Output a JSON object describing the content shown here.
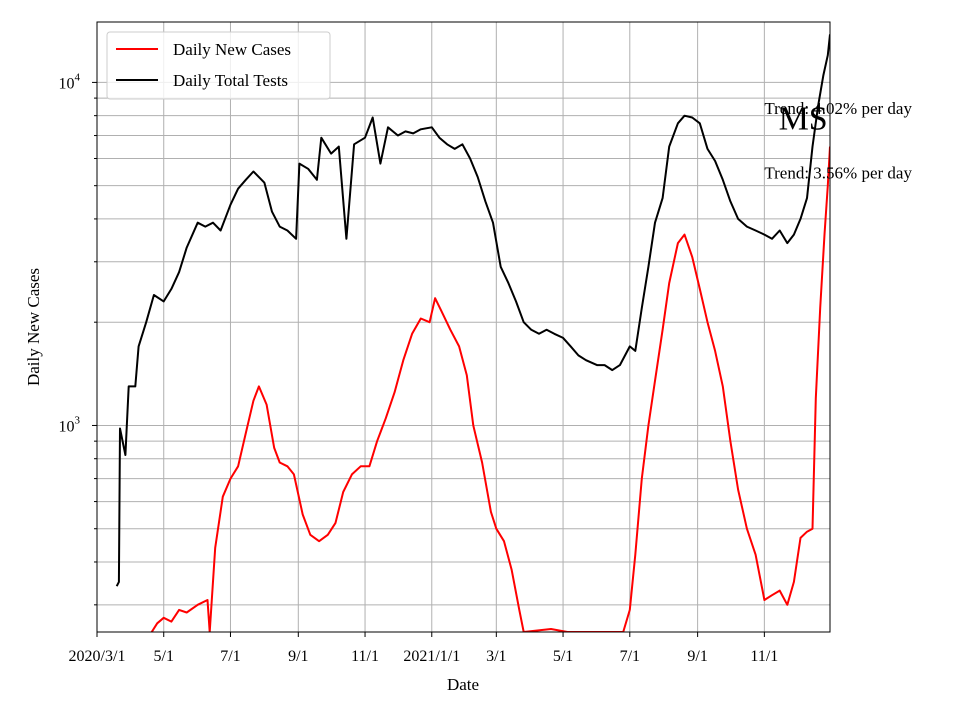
{
  "chart_data": {
    "type": "line",
    "xlabel": "Date",
    "ylabel": "Daily New Cases",
    "yscale": "log",
    "ylim": [
      250,
      15000
    ],
    "xlim": [
      "2020-03-01",
      "2021-12-31"
    ],
    "grid": true,
    "legend_placement": "top-left",
    "x_ticks": [
      {
        "date": "2020-03-01",
        "label": "2020/3/1"
      },
      {
        "date": "2020-05-01",
        "label": "5/1"
      },
      {
        "date": "2020-07-01",
        "label": "7/1"
      },
      {
        "date": "2020-09-01",
        "label": "9/1"
      },
      {
        "date": "2020-11-01",
        "label": "11/1"
      },
      {
        "date": "2021-01-01",
        "label": "2021/1/1"
      },
      {
        "date": "2021-03-01",
        "label": "3/1"
      },
      {
        "date": "2021-05-01",
        "label": "5/1"
      },
      {
        "date": "2021-07-01",
        "label": "7/1"
      },
      {
        "date": "2021-09-01",
        "label": "9/1"
      },
      {
        "date": "2021-11-01",
        "label": "11/1"
      }
    ],
    "y_ticks": [
      {
        "value": 1000,
        "base": "10",
        "exp": "3"
      },
      {
        "value": 10000,
        "base": "10",
        "exp": "4"
      }
    ],
    "series": [
      {
        "name": "Daily New Cases",
        "color": "#ff0000",
        "points": [
          [
            "2020-04-20",
            250
          ],
          [
            "2020-04-25",
            265
          ],
          [
            "2020-05-01",
            275
          ],
          [
            "2020-05-08",
            268
          ],
          [
            "2020-05-15",
            290
          ],
          [
            "2020-05-22",
            285
          ],
          [
            "2020-06-01",
            300
          ],
          [
            "2020-06-10",
            310
          ],
          [
            "2020-06-12",
            250
          ],
          [
            "2020-06-17",
            440
          ],
          [
            "2020-06-24",
            620
          ],
          [
            "2020-07-01",
            700
          ],
          [
            "2020-07-08",
            760
          ],
          [
            "2020-07-15",
            950
          ],
          [
            "2020-07-22",
            1180
          ],
          [
            "2020-07-27",
            1300
          ],
          [
            "2020-08-03",
            1150
          ],
          [
            "2020-08-10",
            860
          ],
          [
            "2020-08-15",
            780
          ],
          [
            "2020-08-22",
            760
          ],
          [
            "2020-08-28",
            720
          ],
          [
            "2020-09-05",
            550
          ],
          [
            "2020-09-12",
            480
          ],
          [
            "2020-09-20",
            460
          ],
          [
            "2020-09-28",
            480
          ],
          [
            "2020-10-05",
            520
          ],
          [
            "2020-10-12",
            640
          ],
          [
            "2020-10-20",
            720
          ],
          [
            "2020-10-28",
            760
          ],
          [
            "2020-11-05",
            760
          ],
          [
            "2020-11-12",
            900
          ],
          [
            "2020-11-20",
            1050
          ],
          [
            "2020-11-28",
            1250
          ],
          [
            "2020-12-06",
            1550
          ],
          [
            "2020-12-14",
            1850
          ],
          [
            "2020-12-22",
            2050
          ],
          [
            "2020-12-30",
            2000
          ],
          [
            "2021-01-04",
            2350
          ],
          [
            "2021-01-10",
            2150
          ],
          [
            "2021-01-18",
            1900
          ],
          [
            "2021-01-26",
            1700
          ],
          [
            "2021-02-02",
            1400
          ],
          [
            "2021-02-08",
            1000
          ],
          [
            "2021-02-16",
            780
          ],
          [
            "2021-02-24",
            560
          ],
          [
            "2021-03-01",
            500
          ],
          [
            "2021-03-08",
            460
          ],
          [
            "2021-03-15",
            380
          ],
          [
            "2021-03-22",
            290
          ],
          [
            "2021-03-26",
            250
          ],
          [
            "2021-04-20",
            255
          ],
          [
            "2021-05-05",
            250
          ],
          [
            "2021-06-25",
            250
          ],
          [
            "2021-07-01",
            290
          ],
          [
            "2021-07-06",
            420
          ],
          [
            "2021-07-12",
            700
          ],
          [
            "2021-07-18",
            1000
          ],
          [
            "2021-07-24",
            1350
          ],
          [
            "2021-07-31",
            1900
          ],
          [
            "2021-08-06",
            2600
          ],
          [
            "2021-08-14",
            3400
          ],
          [
            "2021-08-20",
            3600
          ],
          [
            "2021-08-27",
            3100
          ],
          [
            "2021-09-03",
            2500
          ],
          [
            "2021-09-10",
            2000
          ],
          [
            "2021-09-17",
            1650
          ],
          [
            "2021-09-24",
            1300
          ],
          [
            "2021-10-01",
            900
          ],
          [
            "2021-10-08",
            650
          ],
          [
            "2021-10-16",
            500
          ],
          [
            "2021-10-24",
            420
          ],
          [
            "2021-11-01",
            310
          ],
          [
            "2021-11-08",
            320
          ],
          [
            "2021-11-15",
            330
          ],
          [
            "2021-11-22",
            300
          ],
          [
            "2021-11-28",
            350
          ],
          [
            "2021-12-04",
            470
          ],
          [
            "2021-12-10",
            490
          ],
          [
            "2021-12-15",
            500
          ],
          [
            "2021-12-18",
            1200
          ],
          [
            "2021-12-22",
            2200
          ],
          [
            "2021-12-26",
            3600
          ],
          [
            "2021-12-29",
            5000
          ],
          [
            "2021-12-31",
            6500
          ]
        ]
      },
      {
        "name": "Daily Total Tests",
        "color": "#000000",
        "points": [
          [
            "2020-03-19",
            340
          ],
          [
            "2020-03-21",
            350
          ],
          [
            "2020-03-22",
            980
          ],
          [
            "2020-03-27",
            820
          ],
          [
            "2020-03-30",
            1300
          ],
          [
            "2020-04-05",
            1300
          ],
          [
            "2020-04-08",
            1700
          ],
          [
            "2020-04-15",
            2000
          ],
          [
            "2020-04-22",
            2400
          ],
          [
            "2020-05-01",
            2300
          ],
          [
            "2020-05-08",
            2500
          ],
          [
            "2020-05-15",
            2800
          ],
          [
            "2020-05-22",
            3300
          ],
          [
            "2020-06-01",
            3900
          ],
          [
            "2020-06-08",
            3800
          ],
          [
            "2020-06-15",
            3900
          ],
          [
            "2020-06-22",
            3700
          ],
          [
            "2020-07-01",
            4400
          ],
          [
            "2020-07-08",
            4900
          ],
          [
            "2020-07-15",
            5200
          ],
          [
            "2020-07-22",
            5500
          ],
          [
            "2020-08-01",
            5100
          ],
          [
            "2020-08-08",
            4200
          ],
          [
            "2020-08-15",
            3800
          ],
          [
            "2020-08-22",
            3700
          ],
          [
            "2020-08-30",
            3500
          ],
          [
            "2020-09-02",
            5800
          ],
          [
            "2020-09-10",
            5600
          ],
          [
            "2020-09-18",
            5200
          ],
          [
            "2020-09-22",
            6900
          ],
          [
            "2020-10-01",
            6200
          ],
          [
            "2020-10-08",
            6500
          ],
          [
            "2020-10-15",
            3500
          ],
          [
            "2020-10-22",
            6600
          ],
          [
            "2020-11-01",
            6900
          ],
          [
            "2020-11-08",
            7900
          ],
          [
            "2020-11-15",
            5800
          ],
          [
            "2020-11-22",
            7400
          ],
          [
            "2020-12-01",
            7000
          ],
          [
            "2020-12-08",
            7200
          ],
          [
            "2020-12-15",
            7100
          ],
          [
            "2020-12-22",
            7300
          ],
          [
            "2021-01-01",
            7400
          ],
          [
            "2021-01-08",
            6900
          ],
          [
            "2021-01-15",
            6600
          ],
          [
            "2021-01-22",
            6400
          ],
          [
            "2021-01-29",
            6600
          ],
          [
            "2021-02-05",
            6000
          ],
          [
            "2021-02-12",
            5300
          ],
          [
            "2021-02-19",
            4500
          ],
          [
            "2021-02-26",
            3900
          ],
          [
            "2021-03-05",
            2900
          ],
          [
            "2021-03-12",
            2600
          ],
          [
            "2021-03-19",
            2300
          ],
          [
            "2021-03-26",
            2000
          ],
          [
            "2021-04-02",
            1900
          ],
          [
            "2021-04-09",
            1850
          ],
          [
            "2021-04-16",
            1900
          ],
          [
            "2021-04-23",
            1850
          ],
          [
            "2021-05-01",
            1800
          ],
          [
            "2021-05-08",
            1700
          ],
          [
            "2021-05-15",
            1600
          ],
          [
            "2021-05-22",
            1550
          ],
          [
            "2021-06-01",
            1500
          ],
          [
            "2021-06-08",
            1500
          ],
          [
            "2021-06-15",
            1450
          ],
          [
            "2021-06-22",
            1500
          ],
          [
            "2021-07-01",
            1700
          ],
          [
            "2021-07-06",
            1650
          ],
          [
            "2021-07-12",
            2200
          ],
          [
            "2021-07-18",
            2900
          ],
          [
            "2021-07-24",
            3900
          ],
          [
            "2021-07-31",
            4600
          ],
          [
            "2021-08-06",
            6500
          ],
          [
            "2021-08-14",
            7600
          ],
          [
            "2021-08-20",
            8000
          ],
          [
            "2021-08-27",
            7900
          ],
          [
            "2021-09-03",
            7600
          ],
          [
            "2021-09-10",
            6400
          ],
          [
            "2021-09-17",
            5900
          ],
          [
            "2021-09-24",
            5200
          ],
          [
            "2021-10-01",
            4500
          ],
          [
            "2021-10-08",
            4000
          ],
          [
            "2021-10-16",
            3800
          ],
          [
            "2021-10-24",
            3700
          ],
          [
            "2021-11-01",
            3600
          ],
          [
            "2021-11-08",
            3500
          ],
          [
            "2021-11-15",
            3700
          ],
          [
            "2021-11-22",
            3400
          ],
          [
            "2021-11-28",
            3600
          ],
          [
            "2021-12-04",
            4000
          ],
          [
            "2021-12-10",
            4600
          ],
          [
            "2021-12-15",
            6500
          ],
          [
            "2021-12-20",
            8500
          ],
          [
            "2021-12-25",
            10500
          ],
          [
            "2021-12-29",
            12000
          ],
          [
            "2021-12-31",
            13800
          ]
        ]
      }
    ],
    "annotations": [
      {
        "text": "Trend: 4.02% per day",
        "at_date": "2021-11-01",
        "at_value": 8100
      },
      {
        "text": "Trend: 3.56% per day",
        "at_date": "2021-11-01",
        "at_value": 5250
      },
      {
        "text": "MS",
        "at_date": "2021-11-14",
        "at_value": 7300,
        "size": "large"
      }
    ]
  }
}
